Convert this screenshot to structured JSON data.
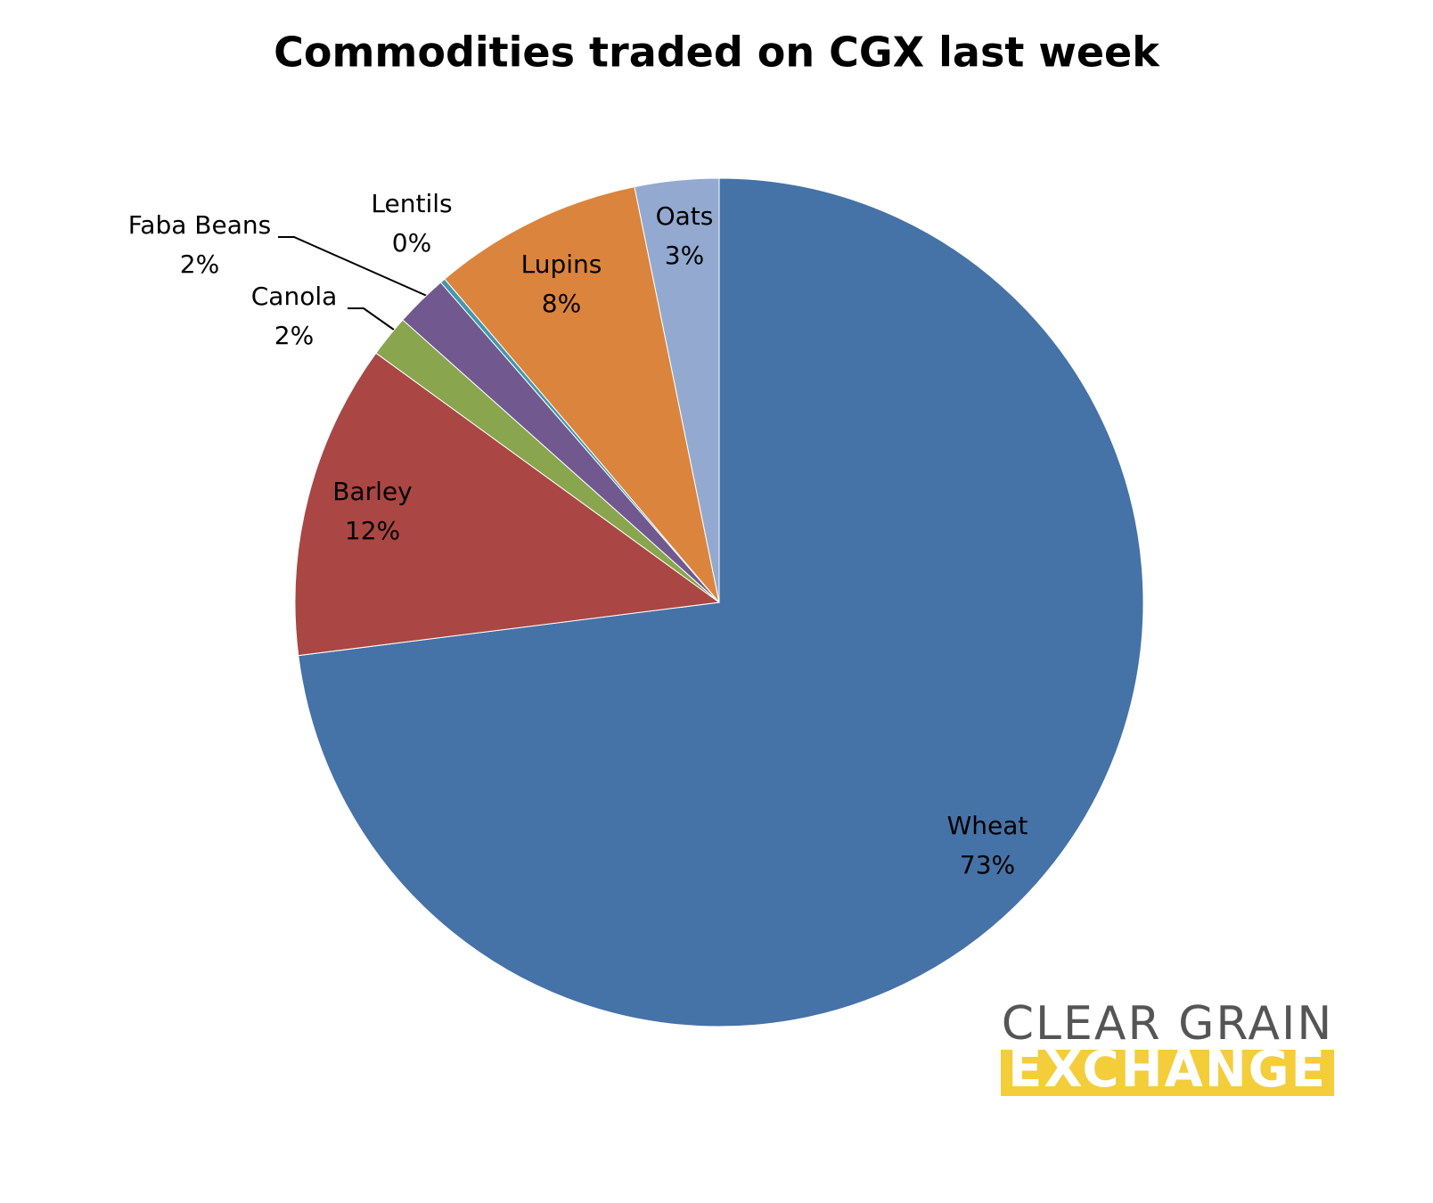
{
  "chart_data": {
    "type": "pie",
    "title": "Commodities traded on CGX last week",
    "categories": [
      "Wheat",
      "Barley",
      "Canola",
      "Faba Beans",
      "Lentils",
      "Lupins",
      "Oats"
    ],
    "values": [
      73,
      12,
      1.6,
      2,
      0.2,
      8,
      3.2
    ],
    "value_labels": [
      "73%",
      "12%",
      "2%",
      "2%",
      "0%",
      "8%",
      "3%"
    ],
    "colors": [
      "#4572a7",
      "#aa4643",
      "#89a54e",
      "#71588f",
      "#4198af",
      "#db843d",
      "#93a9cf"
    ],
    "logo": {
      "line1": "CLEAR GRAIN",
      "line2": "EXCHANGE"
    }
  }
}
